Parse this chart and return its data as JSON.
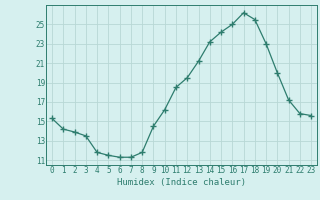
{
  "x": [
    0,
    1,
    2,
    3,
    4,
    5,
    6,
    7,
    8,
    9,
    10,
    11,
    12,
    13,
    14,
    15,
    16,
    17,
    18,
    19,
    20,
    21,
    22,
    23
  ],
  "y": [
    15.3,
    14.2,
    13.9,
    13.5,
    11.8,
    11.5,
    11.3,
    11.3,
    11.8,
    14.5,
    16.2,
    18.5,
    19.5,
    21.2,
    23.2,
    24.2,
    25.0,
    26.2,
    25.5,
    23.0,
    20.0,
    17.2,
    15.8,
    15.6
  ],
  "xlim": [
    -0.5,
    23.5
  ],
  "ylim": [
    10.5,
    27.0
  ],
  "yticks": [
    11,
    13,
    15,
    17,
    19,
    21,
    23,
    25
  ],
  "xticks": [
    0,
    1,
    2,
    3,
    4,
    5,
    6,
    7,
    8,
    9,
    10,
    11,
    12,
    13,
    14,
    15,
    16,
    17,
    18,
    19,
    20,
    21,
    22,
    23
  ],
  "xlabel": "Humidex (Indice chaleur)",
  "line_color": "#2e7d6e",
  "marker": "+",
  "marker_size": 4,
  "bg_color": "#d6f0ef",
  "grid_color": "#b8d8d5",
  "label_color": "#2e7d6e",
  "tick_color": "#2e7d6e",
  "tick_fontsize": 5.5,
  "xlabel_fontsize": 6.5
}
